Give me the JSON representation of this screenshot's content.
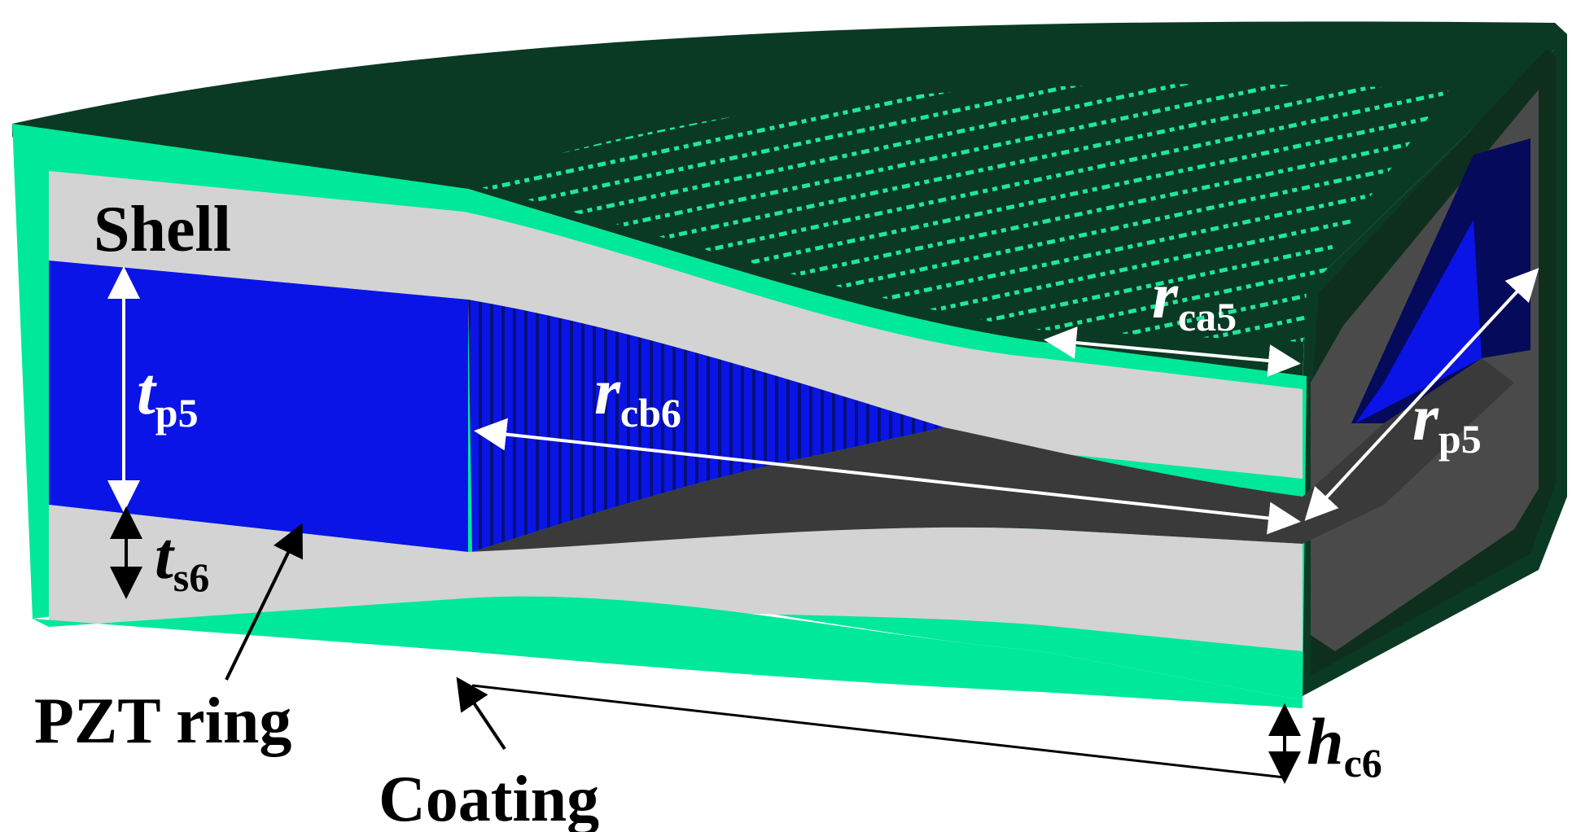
{
  "labels": {
    "shell": "Shell",
    "pzt_ring": "PZT ring",
    "coating": "Coating"
  },
  "dimensions": {
    "t_p5": {
      "symbol": "t",
      "subscript": "p5"
    },
    "t_s6": {
      "symbol": "t",
      "subscript": "s6"
    },
    "r_cb6": {
      "symbol": "r",
      "subscript": "cb6"
    },
    "r_ca5": {
      "symbol": "r",
      "subscript": "ca5"
    },
    "r_p5": {
      "symbol": "r",
      "subscript": "p5"
    },
    "h_c6": {
      "symbol": "h",
      "subscript": "c6"
    }
  },
  "colors": {
    "coating": "#00e89a",
    "coating_dark": "#0b3a24",
    "shell": "#d3d3d3",
    "shell_dark": "#4a4a4a",
    "pzt": "#0a14e6",
    "pzt_dark": "#050a5a",
    "cavity": "#3a3a3a"
  }
}
